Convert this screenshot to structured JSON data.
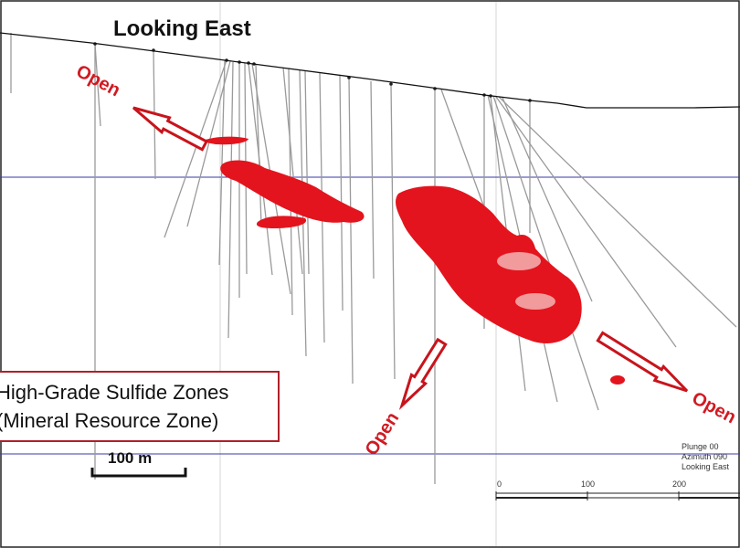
{
  "title": "Looking East",
  "annotations": {
    "open_label": "Open"
  },
  "legend": {
    "line1": "High-Grade Sulfide Zones",
    "line2": "(Mineral Resource Zone)"
  },
  "scale_bar": {
    "label": "100 m"
  },
  "view_info": {
    "plunge": "Plunge 00",
    "azimuth": "Azimuth 090",
    "direction": "Looking East"
  },
  "grid_scale": {
    "ticks": [
      "0",
      "100",
      "200"
    ]
  },
  "colors": {
    "mineral_zone": "#e3141d",
    "arrow": "#c8141c",
    "grid_line": "#3a3aa8",
    "drillhole": "#9a9a9a"
  }
}
